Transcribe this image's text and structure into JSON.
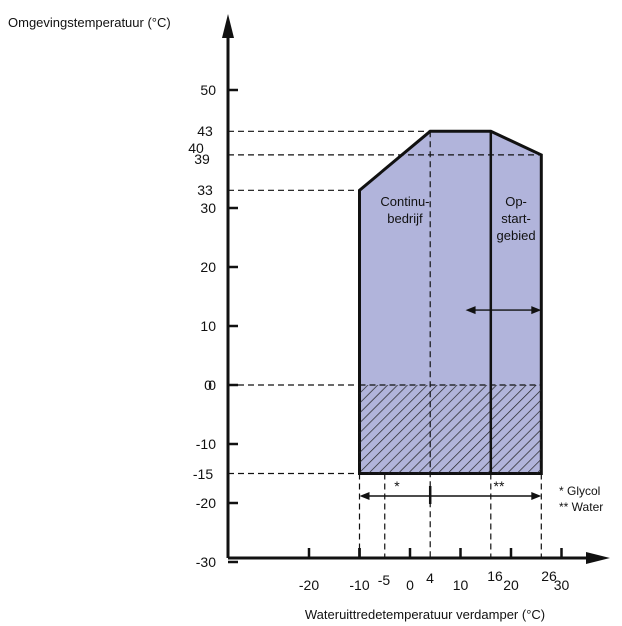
{
  "chart_data": {
    "type": "area",
    "ylabel": "Omgevingstemperatuur (°C)",
    "xlabel": "Wateruittredetemperatuur verdamper (°C)",
    "ylim": [
      -30,
      55
    ],
    "xlim": [
      -30,
      35
    ],
    "y_ticks": [
      50,
      30,
      20,
      10,
      0,
      -10,
      -20,
      -30
    ],
    "y_tick_labels": [
      "50",
      "30",
      "20",
      "10",
      "0",
      "-10",
      "-20",
      "-30"
    ],
    "x_ticks": [
      -20,
      -10,
      0,
      10,
      20,
      30
    ],
    "x_tick_labels": [
      "-20",
      "-10",
      "0",
      "10",
      "20",
      "30"
    ],
    "y_reference": [
      {
        "value": 43,
        "label": "43",
        "x_end": 4
      },
      {
        "value": 39,
        "label": "39",
        "x_end": 26
      },
      {
        "value": 40,
        "label": "40",
        "x_end": null
      },
      {
        "value": 33,
        "label": "33",
        "x_end": -10
      },
      {
        "value": 0,
        "label": "0",
        "x_end": -10
      },
      {
        "value": -15,
        "label": "-15",
        "x_end": -10
      }
    ],
    "x_reference": [
      {
        "value": -5,
        "label": "-5"
      },
      {
        "value": 4,
        "label": "4"
      },
      {
        "value": 16,
        "label": "16"
      },
      {
        "value": 26,
        "label": "26"
      }
    ],
    "envelope": [
      [
        -10,
        -15
      ],
      [
        -10,
        33
      ],
      [
        4,
        43
      ],
      [
        16,
        43
      ],
      [
        26,
        39
      ],
      [
        26,
        -15
      ]
    ],
    "hatched_region": {
      "x": [
        -10,
        26
      ],
      "y": [
        -15,
        0
      ]
    },
    "divider_x": 16,
    "regions": [
      {
        "label_lines": [
          "Continu-",
          "bedrijf"
        ],
        "x": -1,
        "y": 29
      },
      {
        "label_lines": [
          "Op-",
          "start-",
          "gebied"
        ],
        "x": 21,
        "y": 29
      }
    ],
    "range_arrow": {
      "y": -20,
      "x_from": -10,
      "x_to": 26,
      "x_mid": 4,
      "left_marker": "*",
      "right_marker": "**"
    },
    "double_arrow": {
      "y": 12.7,
      "x_from": 11,
      "x_to": 26
    },
    "legend": [
      "* Glycol",
      "** Water"
    ],
    "colors": {
      "fill": "#b1b4db",
      "line": "#111111",
      "axis": "#111111"
    }
  }
}
